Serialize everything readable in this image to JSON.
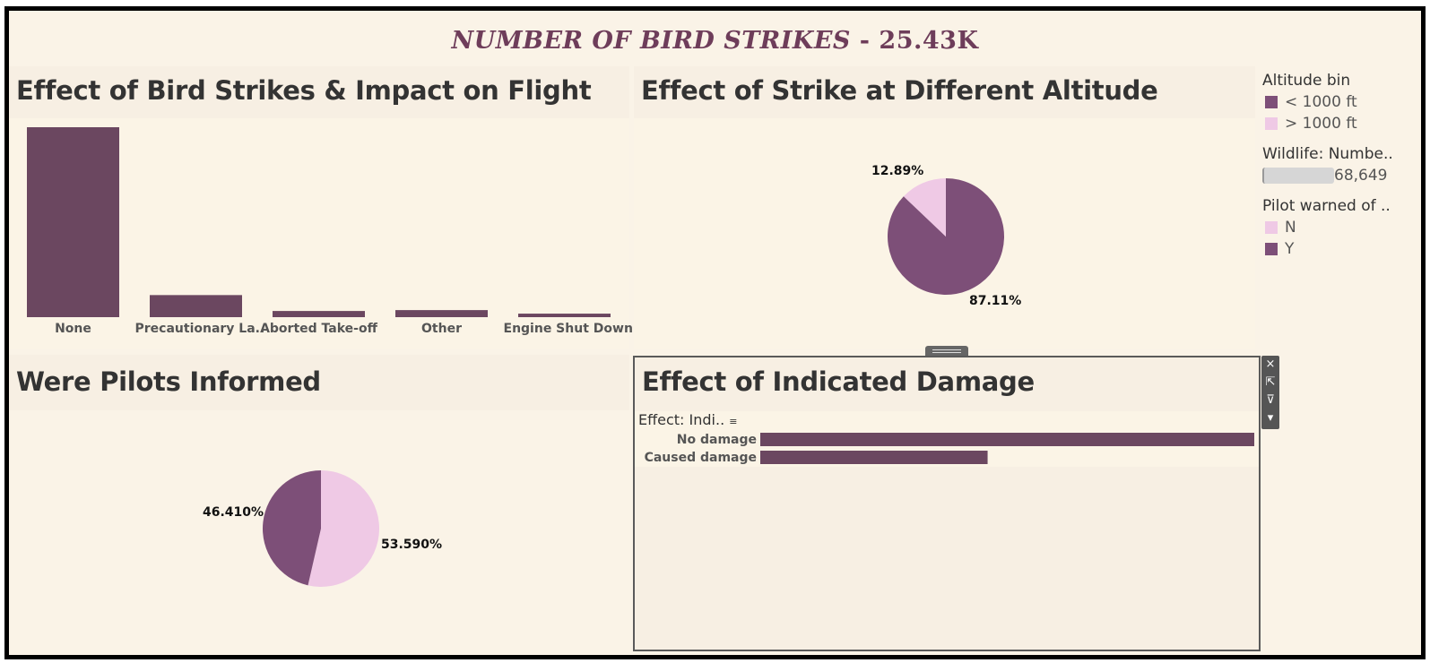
{
  "header": {
    "title_main": "NUMBER OF BIRD STRIKES",
    "title_value": " - 25.43K"
  },
  "colors": {
    "bar": "#6b4760",
    "dark_purple": "#7d4f78",
    "light_pink": "#efc9e5",
    "background": "#faf3e7"
  },
  "panels": {
    "impact": {
      "title": "Effect of Bird Strikes & Impact on Flight"
    },
    "altitude": {
      "title": "Effect of Strike at Different Altitude"
    },
    "pilots": {
      "title": "Were Pilots Informed"
    },
    "damage": {
      "title": "Effect of Indicated Damage",
      "column_header": "Effect: Indi.."
    }
  },
  "legends": {
    "altitude": {
      "title": "Altitude bin",
      "items": [
        "< 1000 ft",
        "> 1000 ft"
      ]
    },
    "wildlife": {
      "title": "Wildlife: Numbe..",
      "max_label": "68,649"
    },
    "pilot": {
      "title": "Pilot warned of ..",
      "items": [
        "N",
        "Y"
      ]
    }
  },
  "toolbar": {
    "close_icon": "×",
    "popout_icon": "⇱",
    "filter_icon": "⊽",
    "more_icon": "▾"
  },
  "chart_data": [
    {
      "type": "bar",
      "categories": [
        "None",
        "Precautionary La..",
        "Aborted Take-off",
        "Other",
        "Engine Shut Down"
      ],
      "values": [
        21500,
        2500,
        700,
        800,
        400
      ],
      "title": "Effect of Bird Strikes & Impact on Flight",
      "grid": false
    },
    {
      "type": "pie",
      "title": "Effect of Strike at Different Altitude",
      "labels": [
        "< 1000 ft",
        "> 1000 ft"
      ],
      "values": [
        87.11,
        12.89
      ],
      "display_labels": [
        "87.11%",
        "12.89%"
      ]
    },
    {
      "type": "pie",
      "title": "Were Pilots Informed",
      "labels": [
        "N",
        "Y"
      ],
      "values": [
        53.59,
        46.41
      ],
      "display_labels": [
        "53.590%",
        "46.410%"
      ]
    },
    {
      "type": "bar",
      "orientation": "horizontal",
      "title": "Effect of Indicated Damage",
      "categories": [
        "No damage",
        "Caused damage"
      ],
      "values": [
        22600,
        10400
      ]
    }
  ]
}
